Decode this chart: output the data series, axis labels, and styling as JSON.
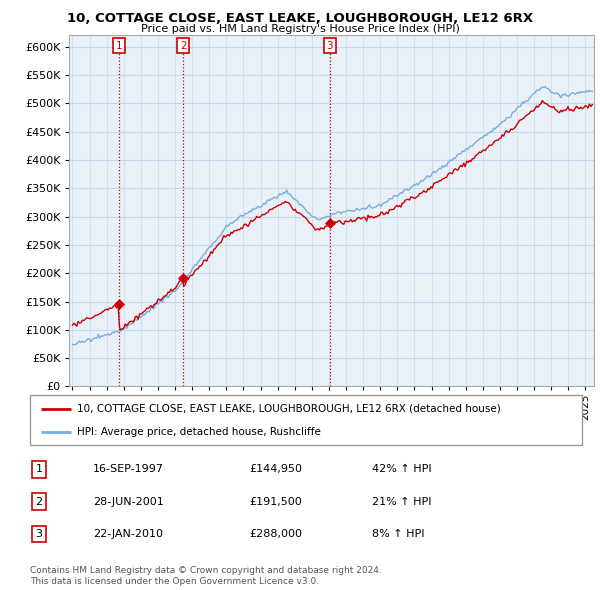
{
  "title1": "10, COTTAGE CLOSE, EAST LEAKE, LOUGHBOROUGH, LE12 6RX",
  "title2": "Price paid vs. HM Land Registry's House Price Index (HPI)",
  "ylim": [
    0,
    620000
  ],
  "yticks": [
    0,
    50000,
    100000,
    150000,
    200000,
    250000,
    300000,
    350000,
    400000,
    450000,
    500000,
    550000,
    600000
  ],
  "xlim_start": 1994.8,
  "xlim_end": 2025.5,
  "sale_color": "#cc0000",
  "hpi_color": "#7aaddb",
  "chart_bg": "#e8f0f8",
  "sale_points": [
    {
      "year": 1997.71,
      "price": 144950,
      "label": "1"
    },
    {
      "year": 2001.49,
      "price": 191500,
      "label": "2"
    },
    {
      "year": 2010.06,
      "price": 288000,
      "label": "3"
    }
  ],
  "vline_color": "#cc0000",
  "vline_style": ":",
  "legend_sale_label": "10, COTTAGE CLOSE, EAST LEAKE, LOUGHBOROUGH, LE12 6RX (detached house)",
  "legend_hpi_label": "HPI: Average price, detached house, Rushcliffe",
  "table_rows": [
    {
      "num": "1",
      "date": "16-SEP-1997",
      "price": "£144,950",
      "change": "42% ↑ HPI"
    },
    {
      "num": "2",
      "date": "28-JUN-2001",
      "price": "£191,500",
      "change": "21% ↑ HPI"
    },
    {
      "num": "3",
      "date": "22-JAN-2010",
      "price": "£288,000",
      "change": "8% ↑ HPI"
    }
  ],
  "footnote1": "Contains HM Land Registry data © Crown copyright and database right 2024.",
  "footnote2": "This data is licensed under the Open Government Licence v3.0.",
  "bg_color": "#ffffff",
  "grid_color": "#c8d8e8"
}
